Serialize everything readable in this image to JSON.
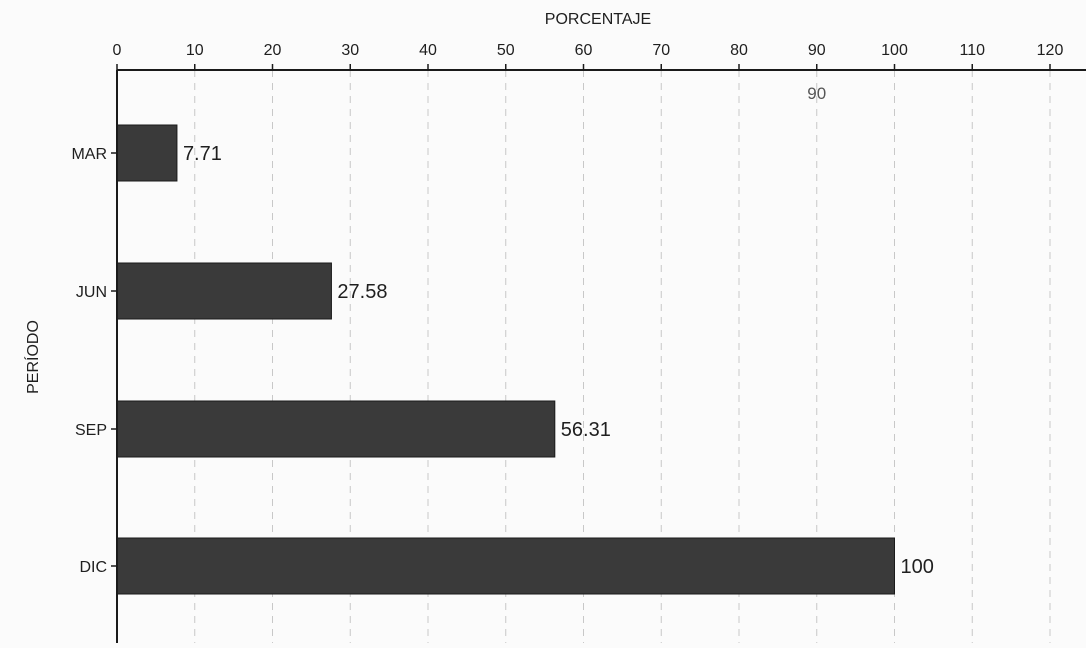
{
  "chart_data": {
    "type": "bar",
    "orientation": "horizontal",
    "xlabel": "PORCENTAJE",
    "ylabel": "PERÍODO",
    "categories": [
      "MAR",
      "JUN",
      "SEP",
      "DIC"
    ],
    "values": [
      7.71,
      27.58,
      56.31,
      100
    ],
    "value_labels": [
      "7.71",
      "27.58",
      "56.31",
      "100"
    ],
    "xlim": [
      0,
      124
    ],
    "xticks": [
      0,
      10,
      20,
      30,
      40,
      50,
      60,
      70,
      80,
      90,
      100,
      110,
      120
    ],
    "x_axis_position": "top",
    "grid": "vertical dashed",
    "annotations": [
      {
        "text": "90",
        "x": 90
      }
    ],
    "colors": {
      "bar": "#3a3a3a",
      "axis": "#1a1a1a",
      "grid": "#c8c8c8"
    }
  }
}
